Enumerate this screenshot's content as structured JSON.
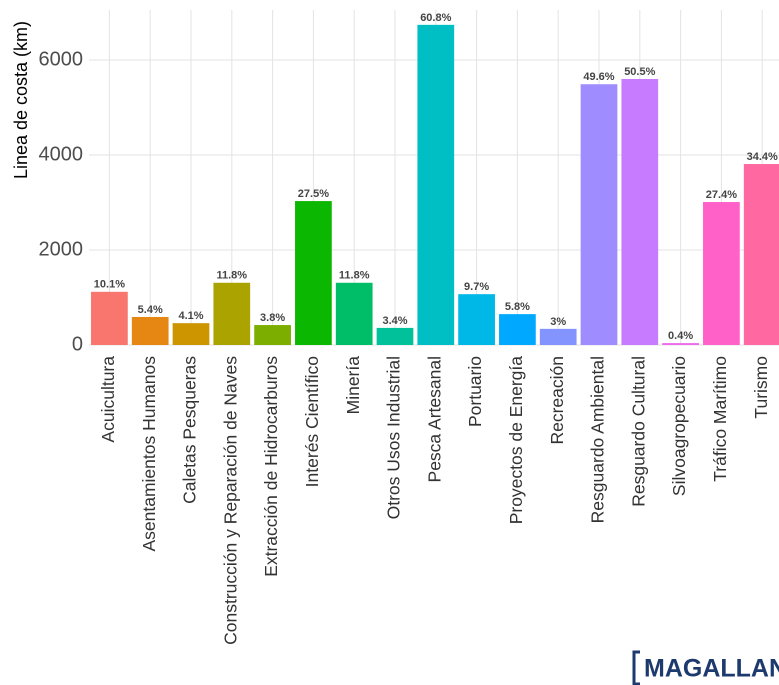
{
  "chart_data": {
    "type": "bar",
    "y_label": "Linea de costa (km)",
    "categories": [
      "Acuicultura",
      "Asentamientos Humanos",
      "Caletas Pesqueras",
      "Construcción y Reparación de Naves",
      "Extracción de Hidrocarburos",
      "Interés Científico",
      "Minería",
      "Otros Usos Industrial",
      "Pesca Artesanal",
      "Portuario",
      "Proyectos de Energía",
      "Recreación",
      "Resguardo Ambiental",
      "Resguardo Cultural",
      "Silvoagropecuario",
      "Tráfico Marítimo",
      "Turismo"
    ],
    "values": [
      1120,
      590,
      460,
      1310,
      420,
      3030,
      1310,
      360,
      6740,
      1070,
      650,
      340,
      5490,
      5600,
      40,
      3010,
      3810
    ],
    "bar_labels": [
      "10.1%",
      "5.4%",
      "4.1%",
      "11.8%",
      "3.8%",
      "27.5%",
      "11.8%",
      "3.4%",
      "60.8%",
      "9.7%",
      "5.8%",
      "3%",
      "49.6%",
      "50.5%",
      "0.4%",
      "27.4%",
      "34.4%"
    ],
    "colors": [
      "#F8766D",
      "#E68613",
      "#CD9600",
      "#ABA300",
      "#7CAE00",
      "#0CB702",
      "#00BE67",
      "#00C19A",
      "#00BFC4",
      "#00B8E7",
      "#00A9FF",
      "#8494FF",
      "#9F8CFF",
      "#C77CFF",
      "#ED68ED",
      "#FF61C9",
      "#FF68A1"
    ],
    "ylim": [
      0,
      7000
    ],
    "yticks": [
      0,
      2000,
      4000,
      6000
    ],
    "grid": true,
    "logo": "MAGALLANES"
  }
}
